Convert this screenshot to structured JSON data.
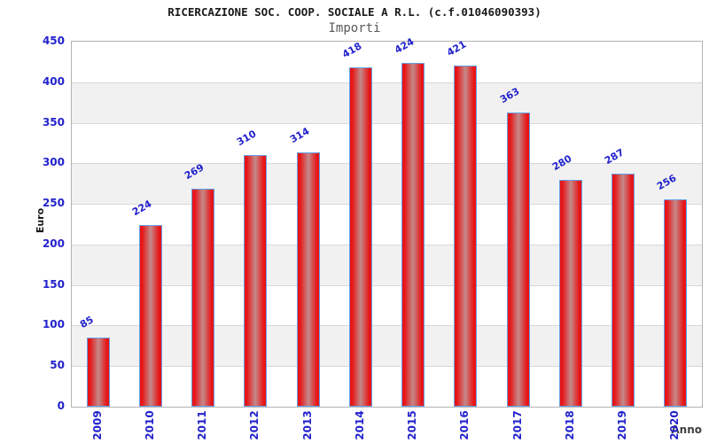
{
  "chart_data": {
    "type": "bar",
    "title": "RICERCAZIONE SOC. COOP. SOCIALE A R.L. (c.f.01046090393)",
    "subtitle": "Importi",
    "xlabel": "Anno",
    "ylabel": "Euro",
    "categories": [
      "2009",
      "2010",
      "2011",
      "2012",
      "2013",
      "2014",
      "2015",
      "2016",
      "2017",
      "2018",
      "2019",
      "2020"
    ],
    "values": [
      85,
      224,
      269,
      310,
      314,
      418,
      424,
      421,
      363,
      280,
      287,
      256
    ],
    "ylim": [
      0,
      450
    ],
    "y_ticks": [
      0,
      50,
      100,
      150,
      200,
      250,
      300,
      350,
      400,
      450
    ],
    "grid": "horizontal-bands",
    "legend": "none",
    "colors": {
      "bar_edge_red": "#e81416",
      "bar_center": "#c48a8a",
      "bar_border": "#64a0e6",
      "value_label_blue": "#2222cc",
      "tick_label_blue": "#2222cc",
      "band_gray": "#f1f1f1",
      "gridline_gray": "#d8d8d8",
      "plot_border_gray": "#b3b3b3"
    }
  }
}
